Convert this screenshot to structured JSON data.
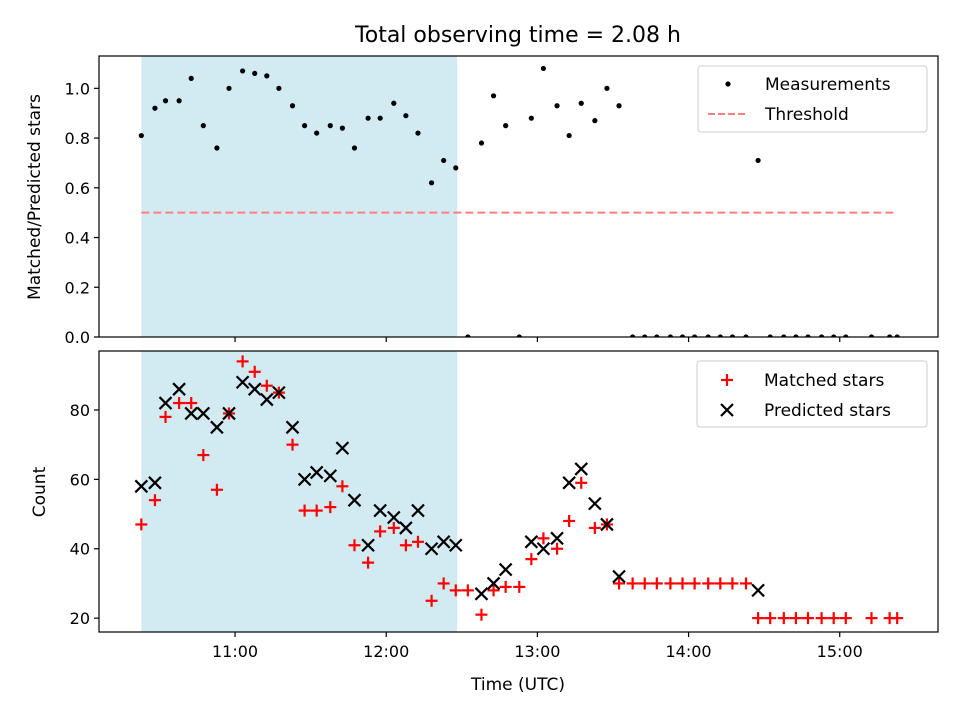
{
  "title": "Total observing time = 2.08 h",
  "x_axis": {
    "label": "Time (UTC)",
    "ticks": [
      {
        "h": 11,
        "label": "11:00"
      },
      {
        "h": 12,
        "label": "12:00"
      },
      {
        "h": 13,
        "label": "13:00"
      },
      {
        "h": 14,
        "label": "14:00"
      },
      {
        "h": 15,
        "label": "15:00"
      }
    ],
    "xlim": [
      10.1,
      15.65
    ]
  },
  "shaded_span": {
    "x_start": 10.38,
    "x_end": 12.47,
    "color": "#add8e6"
  },
  "chart_data": [
    {
      "type": "scatter",
      "ylabel": "Matched/Predicted stars",
      "ylim": [
        0,
        1.13
      ],
      "yticks": [
        0.0,
        0.2,
        0.4,
        0.6,
        0.8,
        1.0
      ],
      "ytick_labels": [
        "0.0",
        "0.2",
        "0.4",
        "0.6",
        "0.8",
        "1.0"
      ],
      "legend_placement": "top-right",
      "series": [
        {
          "name": "Measurements",
          "marker": "dot",
          "color": "#000000",
          "x": [
            10.38,
            10.47,
            10.54,
            10.63,
            10.71,
            10.79,
            10.88,
            10.96,
            11.05,
            11.13,
            11.21,
            11.29,
            11.38,
            11.46,
            11.54,
            11.63,
            11.71,
            11.79,
            11.88,
            11.96,
            12.05,
            12.13,
            12.21,
            12.3,
            12.38,
            12.46,
            12.54,
            12.63,
            12.71,
            12.79,
            12.88,
            12.96,
            13.04,
            13.13,
            13.21,
            13.29,
            13.38,
            13.46,
            13.54,
            13.63,
            13.71,
            13.79,
            13.88,
            13.96,
            14.04,
            14.13,
            14.21,
            14.29,
            14.38,
            14.46,
            14.54,
            14.63,
            14.71,
            14.79,
            14.88,
            14.96,
            15.04,
            15.21,
            15.33,
            15.38
          ],
          "y": [
            0.81,
            0.92,
            0.95,
            0.95,
            1.04,
            0.85,
            0.76,
            1.0,
            1.07,
            1.06,
            1.05,
            1.0,
            0.93,
            0.85,
            0.82,
            0.85,
            0.84,
            0.76,
            0.88,
            0.88,
            0.94,
            0.89,
            0.82,
            0.62,
            0.71,
            0.68,
            0.0,
            0.78,
            0.97,
            0.85,
            0.0,
            0.88,
            1.08,
            0.93,
            0.81,
            0.94,
            0.87,
            1.0,
            0.93,
            0.0,
            0.0,
            0.0,
            0.0,
            0.0,
            0.0,
            0.0,
            0.0,
            0.0,
            0.0,
            0.71,
            0.0,
            0.0,
            0.0,
            0.0,
            0.0,
            0.0,
            0.0,
            0.0,
            0.0,
            0.0
          ]
        },
        {
          "name": "Threshold",
          "marker": "dashed-line",
          "color": "#ff7f7f",
          "x": [
            10.38,
            15.38
          ],
          "y": [
            0.5,
            0.5
          ]
        }
      ]
    },
    {
      "type": "scatter",
      "ylabel": "Count",
      "ylim": [
        16,
        97
      ],
      "yticks": [
        20,
        40,
        60,
        80
      ],
      "ytick_labels": [
        "20",
        "40",
        "60",
        "80"
      ],
      "legend_placement": "top-right",
      "series": [
        {
          "name": "Matched stars",
          "marker": "plus",
          "color": "#ff0000",
          "x": [
            10.38,
            10.47,
            10.54,
            10.63,
            10.71,
            10.79,
            10.88,
            10.96,
            11.05,
            11.13,
            11.21,
            11.29,
            11.38,
            11.46,
            11.54,
            11.63,
            11.71,
            11.79,
            11.88,
            11.96,
            12.05,
            12.13,
            12.21,
            12.3,
            12.38,
            12.46,
            12.54,
            12.63,
            12.71,
            12.79,
            12.88,
            12.96,
            13.04,
            13.13,
            13.21,
            13.29,
            13.38,
            13.46,
            13.54,
            13.63,
            13.71,
            13.79,
            13.88,
            13.96,
            14.04,
            14.13,
            14.21,
            14.29,
            14.38,
            14.46,
            14.54,
            14.63,
            14.71,
            14.79,
            14.88,
            14.96,
            15.04,
            15.21,
            15.33,
            15.38
          ],
          "y": [
            47,
            54,
            78,
            82,
            82,
            67,
            57,
            79,
            94,
            91,
            87,
            85,
            70,
            51,
            51,
            52,
            58,
            41,
            36,
            45,
            46,
            41,
            42,
            25,
            30,
            28,
            28,
            21,
            28,
            29,
            29,
            37,
            43,
            40,
            48,
            59,
            46,
            47,
            30,
            30,
            30,
            30,
            30,
            30,
            30,
            30,
            30,
            30,
            30,
            20,
            20,
            20,
            20,
            20,
            20,
            20,
            20,
            20,
            20,
            20
          ]
        },
        {
          "name": "Predicted stars",
          "marker": "x",
          "color": "#000000",
          "x": [
            10.38,
            10.47,
            10.54,
            10.63,
            10.71,
            10.79,
            10.88,
            10.96,
            11.05,
            11.13,
            11.21,
            11.29,
            11.38,
            11.46,
            11.54,
            11.63,
            11.71,
            11.79,
            11.88,
            11.96,
            12.05,
            12.13,
            12.21,
            12.3,
            12.38,
            12.46,
            12.63,
            12.71,
            12.79,
            12.96,
            13.04,
            13.13,
            13.21,
            13.29,
            13.38,
            13.46,
            13.54,
            14.46
          ],
          "y": [
            58,
            59,
            82,
            86,
            79,
            79,
            75,
            79,
            88,
            86,
            83,
            85,
            75,
            60,
            62,
            61,
            69,
            54,
            41,
            51,
            49,
            46,
            51,
            40,
            42,
            41,
            27,
            30,
            34,
            42,
            40,
            43,
            59,
            63,
            53,
            47,
            32,
            28
          ]
        }
      ]
    }
  ]
}
